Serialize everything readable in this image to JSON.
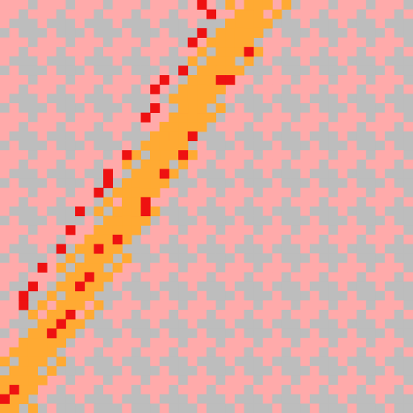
{
  "palette": {
    "light_tile": "#bdbdbd",
    "pink_tile": "#ffaaaa",
    "path_tile": "#ffaa33",
    "marker_red": "#ee1111"
  },
  "grid": {
    "columns": 44,
    "rows": 44
  },
  "path": {
    "description_visible": false
  }
}
